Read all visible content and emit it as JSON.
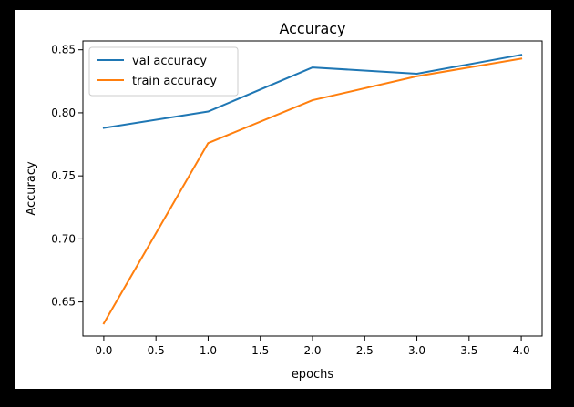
{
  "colors": {
    "background": "#000000",
    "figure": "#ffffff",
    "axes_edge": "#000000",
    "val_series": "#1f77b4",
    "train_series": "#ff7f0e",
    "legend_edge": "#cccccc"
  },
  "chart_data": {
    "type": "line",
    "title": "Accuracy",
    "xlabel": "epochs",
    "ylabel": "Accuracy",
    "xlim": [
      -0.2,
      4.2
    ],
    "ylim": [
      0.623,
      0.857
    ],
    "x_ticks": [
      0.0,
      0.5,
      1.0,
      1.5,
      2.0,
      2.5,
      3.0,
      3.5,
      4.0
    ],
    "x_tick_labels": [
      "0.0",
      "0.5",
      "1.0",
      "1.5",
      "2.0",
      "2.5",
      "3.0",
      "3.5",
      "4.0"
    ],
    "y_ticks": [
      0.65,
      0.7,
      0.75,
      0.8,
      0.85
    ],
    "y_tick_labels": [
      "0.65",
      "0.70",
      "0.75",
      "0.80",
      "0.85"
    ],
    "grid": false,
    "legend_position": "upper-left",
    "x": [
      0,
      1,
      2,
      3,
      4
    ],
    "series": [
      {
        "name": "val accuracy",
        "color": "#1f77b4",
        "values": [
          0.788,
          0.801,
          0.836,
          0.831,
          0.846
        ]
      },
      {
        "name": "train accuracy",
        "color": "#ff7f0e",
        "values": [
          0.633,
          0.776,
          0.81,
          0.829,
          0.843
        ]
      }
    ]
  }
}
